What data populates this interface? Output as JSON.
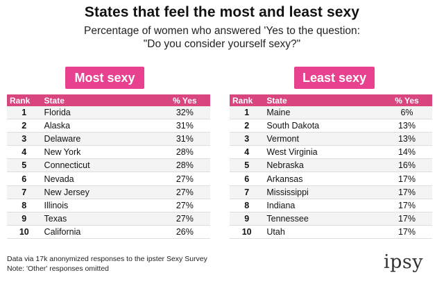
{
  "header": {
    "title": "States that feel the most and least sexy",
    "subtitle_line1": "Percentage of women who answered 'Yes to the question:",
    "subtitle_line2": "\"Do you consider yourself sexy?\""
  },
  "colors": {
    "accent": "#e8418f",
    "header_row": "#d8457f",
    "stripe": "#f4f4f4"
  },
  "tables": {
    "most": {
      "label": "Most sexy",
      "columns": [
        "Rank",
        "State",
        "% Yes"
      ],
      "rows": [
        [
          "1",
          "Florida",
          "32%"
        ],
        [
          "2",
          "Alaska",
          "31%"
        ],
        [
          "3",
          "Delaware",
          "31%"
        ],
        [
          "4",
          "New York",
          "28%"
        ],
        [
          "5",
          "Connecticut",
          "28%"
        ],
        [
          "6",
          "Nevada",
          "27%"
        ],
        [
          "7",
          "New Jersey",
          "27%"
        ],
        [
          "8",
          "Illinois",
          "27%"
        ],
        [
          "9",
          "Texas",
          "27%"
        ],
        [
          "10",
          "California",
          "26%"
        ]
      ]
    },
    "least": {
      "label": "Least sexy",
      "columns": [
        "Rank",
        "State",
        "% Yes"
      ],
      "rows": [
        [
          "1",
          "Maine",
          "6%"
        ],
        [
          "2",
          "South Dakota",
          "13%"
        ],
        [
          "3",
          "Vermont",
          "13%"
        ],
        [
          "4",
          "West Virginia",
          "14%"
        ],
        [
          "5",
          "Nebraska",
          "16%"
        ],
        [
          "6",
          "Arkansas",
          "17%"
        ],
        [
          "7",
          "Mississippi",
          "17%"
        ],
        [
          "8",
          "Indiana",
          "17%"
        ],
        [
          "9",
          "Tennessee",
          "17%"
        ],
        [
          "10",
          "Utah",
          "17%"
        ]
      ]
    }
  },
  "footnotes": {
    "line1": "Data via 17k anonymized responses to the ipster Sexy Survey",
    "line2": "Note: 'Other' responses omitted"
  },
  "logo": {
    "text": "ipsy"
  },
  "chart_data": [
    {
      "type": "table",
      "title": "Most sexy",
      "columns": [
        "Rank",
        "State",
        "% Yes"
      ],
      "rows": [
        [
          1,
          "Florida",
          32
        ],
        [
          2,
          "Alaska",
          31
        ],
        [
          3,
          "Delaware",
          31
        ],
        [
          4,
          "New York",
          28
        ],
        [
          5,
          "Connecticut",
          28
        ],
        [
          6,
          "Nevada",
          27
        ],
        [
          7,
          "New Jersey",
          27
        ],
        [
          8,
          "Illinois",
          27
        ],
        [
          9,
          "Texas",
          27
        ],
        [
          10,
          "California",
          26
        ]
      ]
    },
    {
      "type": "table",
      "title": "Least sexy",
      "columns": [
        "Rank",
        "State",
        "% Yes"
      ],
      "rows": [
        [
          1,
          "Maine",
          6
        ],
        [
          2,
          "South Dakota",
          13
        ],
        [
          3,
          "Vermont",
          13
        ],
        [
          4,
          "West Virginia",
          14
        ],
        [
          5,
          "Nebraska",
          16
        ],
        [
          6,
          "Arkansas",
          17
        ],
        [
          7,
          "Mississippi",
          17
        ],
        [
          8,
          "Indiana",
          17
        ],
        [
          9,
          "Tennessee",
          17
        ],
        [
          10,
          "Utah",
          17
        ]
      ]
    }
  ]
}
